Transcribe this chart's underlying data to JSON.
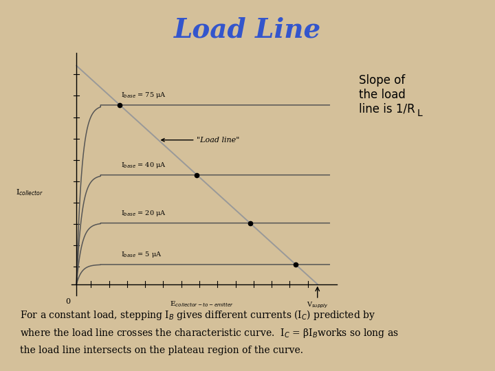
{
  "title": "Load Line",
  "title_color": "#3355CC",
  "title_fontsize": 28,
  "bg_color": "#D4C09A",
  "plot_bg_color": "#FFFFFF",
  "plot_border_color": "#AAAAAA",
  "slope_text": "Slope of\nthe load\nline is 1/R",
  "slope_sub": "L",
  "curve_labels": [
    "I$_{base}$ = 75 μA",
    "I$_{base}$ = 40 μA",
    "I$_{base}$ = 20 μA",
    "I$_{base}$ = 5 μA"
  ],
  "curve_levels": [
    0.82,
    0.5,
    0.28,
    0.09
  ],
  "load_line_color": "#888888",
  "curve_color": "#555555",
  "dot_color": "#000000",
  "axis_color": "#000000",
  "text_color": "#000000",
  "load_line_label": "\"Load line\"",
  "ylabel_text": "I$_{collector}$",
  "xlabel_text": "E$_{collector-to-emitter}$",
  "zero_label": "0",
  "vsupply_label": "V$_{supply}$",
  "body_line1": "For a constant load, stepping I$_B$ gives different currents (I$_C$) predicted by",
  "body_line2": "where the load line crosses the characteristic curve.  I$_C$ = βI$_B$works so long as",
  "body_line3": "the load line intersects on the plateau region of the curve.",
  "body_fontsize": 10,
  "slope_fontsize": 12
}
